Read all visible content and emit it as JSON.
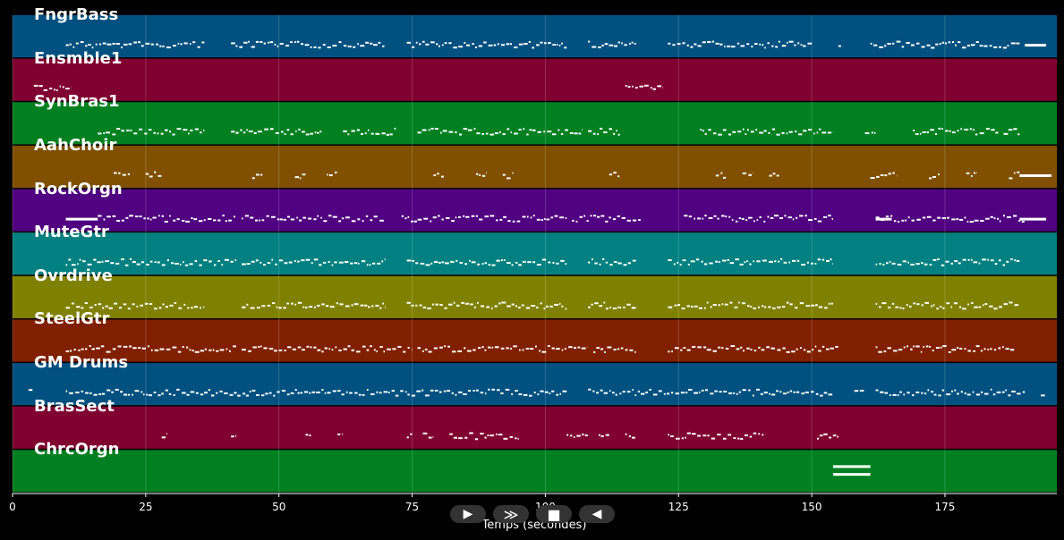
{
  "chart_data": {
    "type": "piano-roll",
    "xlabel": "Temps (secondes)",
    "xlim": [
      0,
      196
    ],
    "x_ticks": [
      "0",
      "25",
      "50",
      "75",
      "100",
      "125",
      "150",
      "175"
    ],
    "x_tick_values": [
      0,
      25,
      50,
      75,
      100,
      125,
      150,
      175
    ],
    "grid": true,
    "tracks": [
      {
        "name": "FngrBass",
        "color": "#005080",
        "segments": [
          [
            10,
            36
          ],
          [
            41,
            70
          ],
          [
            74,
            104
          ],
          [
            108,
            117
          ],
          [
            123,
            150
          ],
          [
            155,
            155.5
          ],
          [
            161,
            189
          ]
        ],
        "long_notes": [
          [
            190,
            194
          ]
        ]
      },
      {
        "name": "Ensmble1",
        "color": "#800030",
        "segments": [
          [
            4,
            11
          ],
          [
            115,
            122
          ]
        ]
      },
      {
        "name": "SynBras1",
        "color": "#008020",
        "segments": [
          [
            16,
            36
          ],
          [
            41,
            58
          ],
          [
            62,
            72
          ],
          [
            76,
            107
          ],
          [
            108,
            114
          ],
          [
            129,
            154
          ],
          [
            160,
            162
          ],
          [
            169,
            185
          ],
          [
            186,
            189
          ]
        ]
      },
      {
        "name": "AahChoir",
        "color": "#805000",
        "segments": [
          [
            19,
            22
          ],
          [
            25,
            28
          ],
          [
            45,
            47
          ],
          [
            53,
            55
          ],
          [
            59,
            61
          ],
          [
            79,
            81
          ],
          [
            87,
            89
          ],
          [
            92,
            94
          ],
          [
            112,
            114
          ],
          [
            132,
            134
          ],
          [
            137,
            139
          ],
          [
            142,
            144
          ],
          [
            161,
            166
          ],
          [
            172,
            174
          ],
          [
            179,
            181
          ],
          [
            187,
            189
          ]
        ],
        "long_notes": [
          [
            189,
            195
          ]
        ]
      },
      {
        "name": "RockOrgn",
        "color": "#500080",
        "segments": [
          [
            16,
            42
          ],
          [
            43,
            70
          ],
          [
            73,
            104
          ],
          [
            105,
            118
          ],
          [
            126,
            154
          ],
          [
            162,
            190
          ]
        ],
        "long_notes": [
          [
            10,
            16
          ],
          [
            162,
            165
          ],
          [
            189,
            194
          ]
        ]
      },
      {
        "name": "MuteGtr",
        "color": "#008080",
        "segments": [
          [
            10,
            42
          ],
          [
            43,
            70
          ],
          [
            74,
            104
          ],
          [
            108,
            117
          ],
          [
            123,
            154
          ],
          [
            162,
            189
          ]
        ]
      },
      {
        "name": "Ovrdrive",
        "color": "#808000",
        "segments": [
          [
            10,
            36
          ],
          [
            43,
            70
          ],
          [
            74,
            104
          ],
          [
            108,
            117
          ],
          [
            123,
            154
          ],
          [
            162,
            189
          ]
        ]
      },
      {
        "name": "SteelGtr",
        "color": "#802000",
        "segments": [
          [
            10,
            42
          ],
          [
            43,
            75
          ],
          [
            76,
            108
          ],
          [
            109,
            117
          ],
          [
            123,
            155
          ],
          [
            162,
            188
          ]
        ]
      },
      {
        "name": "GM Drums",
        "color": "#005080",
        "segments": [
          [
            3,
            4
          ],
          [
            10,
            104
          ],
          [
            108,
            154
          ],
          [
            158,
            160
          ],
          [
            162,
            190
          ],
          [
            193,
            194
          ]
        ]
      },
      {
        "name": "BrasSect",
        "color": "#800030",
        "segments": [
          [
            28,
            29
          ],
          [
            41,
            42
          ],
          [
            55,
            56
          ],
          [
            61,
            62
          ],
          [
            74,
            75
          ],
          [
            77,
            79
          ],
          [
            82,
            95
          ],
          [
            104,
            108
          ],
          [
            110,
            112
          ],
          [
            115,
            117
          ],
          [
            123,
            141
          ],
          [
            151,
            155
          ]
        ]
      },
      {
        "name": "ChrcOrgn",
        "color": "#008020",
        "segments": [],
        "long_notes": [
          [
            154,
            161
          ],
          [
            154,
            161
          ]
        ]
      }
    ]
  },
  "controls": [
    {
      "name": "play-icon",
      "glyph": "▶"
    },
    {
      "name": "forward-icon",
      "glyph": "≫"
    },
    {
      "name": "stop-icon",
      "glyph": "■"
    },
    {
      "name": "rewind-icon",
      "glyph": "◀"
    }
  ]
}
